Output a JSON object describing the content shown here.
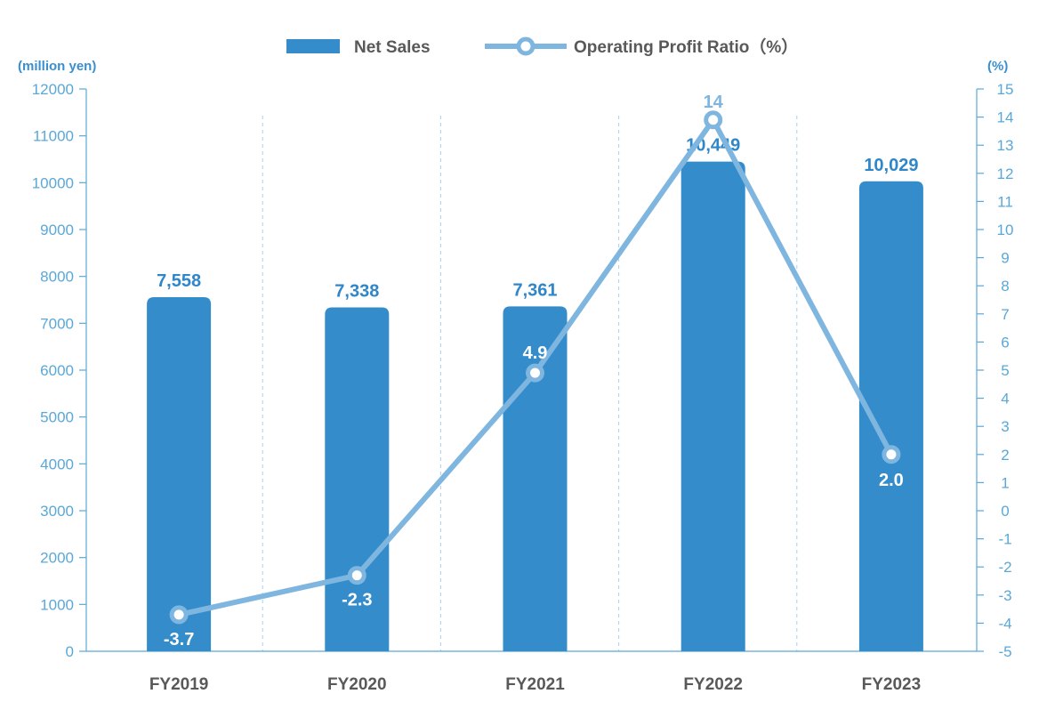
{
  "chart_data": {
    "type": "bar",
    "categories": [
      "FY2019",
      "FY2020",
      "FY2021",
      "FY2022",
      "FY2023"
    ],
    "series": [
      {
        "name": "Net Sales",
        "type": "bar",
        "axis": "left",
        "values": [
          7558,
          7338,
          7361,
          10449,
          10029
        ],
        "labels": [
          "7,558",
          "7,338",
          "7,361",
          "10,449",
          "10,029"
        ],
        "color": "#348ccb"
      },
      {
        "name": "Operating Profit Ratio（%）",
        "type": "line",
        "axis": "right",
        "values": [
          -3.7,
          -2.3,
          4.9,
          13.9,
          2.0
        ],
        "labels": [
          "-3.7",
          "-2.3",
          "4.9",
          "14",
          "2.0"
        ],
        "color": "#7fb6e0"
      }
    ],
    "y_left": {
      "label": "(million yen)",
      "range": [
        0,
        12000
      ],
      "ticks": [
        "0",
        "1000",
        "2000",
        "3000",
        "4000",
        "5000",
        "6000",
        "7000",
        "8000",
        "9000",
        "10000",
        "11000",
        "12000"
      ]
    },
    "y_right": {
      "label": "(%)",
      "range": [
        -5,
        15
      ],
      "ticks": [
        "-5",
        "-4",
        "-3",
        "-2",
        "-1",
        "0",
        "1",
        "2",
        "3",
        "4",
        "5",
        "6",
        "7",
        "8",
        "9",
        "10",
        "11",
        "12",
        "13",
        "14",
        "15"
      ]
    },
    "legend_position": "top-center",
    "grid": "vertical dashed separators between categories"
  }
}
